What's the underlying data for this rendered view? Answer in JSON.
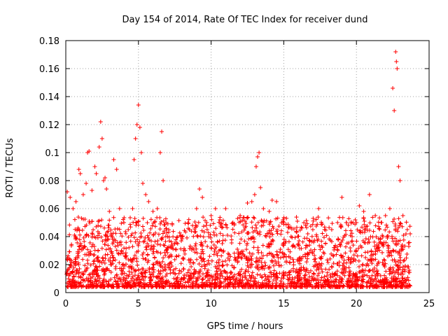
{
  "chart_data": {
    "type": "scatter",
    "title": "Day 154 of 2014, Rate Of TEC Index for receiver dund",
    "xlabel": "GPS time / hours",
    "ylabel": "ROTI / TECUs",
    "xlim": [
      0,
      25
    ],
    "ylim": [
      0,
      0.18
    ],
    "xticks": [
      0,
      5,
      10,
      15,
      20,
      25
    ],
    "yticks": [
      0,
      0.02,
      0.04,
      0.06,
      0.08,
      0.1,
      0.12,
      0.14,
      0.16,
      0.18
    ],
    "xtick_labels": [
      "0",
      "5",
      "10",
      "15",
      "20",
      "25"
    ],
    "ytick_labels": [
      "0",
      "0.02",
      "0.04",
      "0.06",
      "0.08",
      "0.1",
      "0.12",
      "0.14",
      "0.16",
      "0.18"
    ],
    "grid": true,
    "marker": "plus",
    "color": "#ff0000",
    "series": [
      {
        "name": "ROTI",
        "points": [
          [
            0.1,
            0.072
          ],
          [
            0.3,
            0.068
          ],
          [
            0.5,
            0.06
          ],
          [
            0.7,
            0.065
          ],
          [
            0.9,
            0.088
          ],
          [
            1.0,
            0.085
          ],
          [
            1.2,
            0.07
          ],
          [
            1.4,
            0.078
          ],
          [
            1.5,
            0.1
          ],
          [
            1.6,
            0.101
          ],
          [
            1.8,
            0.073
          ],
          [
            2.0,
            0.09
          ],
          [
            2.1,
            0.085
          ],
          [
            2.3,
            0.104
          ],
          [
            2.4,
            0.122
          ],
          [
            2.5,
            0.11
          ],
          [
            2.6,
            0.08
          ],
          [
            2.7,
            0.082
          ],
          [
            2.8,
            0.074
          ],
          [
            3.0,
            0.058
          ],
          [
            3.3,
            0.095
          ],
          [
            3.5,
            0.088
          ],
          [
            3.7,
            0.06
          ],
          [
            4.0,
            0.05
          ],
          [
            4.3,
            0.045
          ],
          [
            4.6,
            0.06
          ],
          [
            4.7,
            0.095
          ],
          [
            4.8,
            0.11
          ],
          [
            4.9,
            0.12
          ],
          [
            5.0,
            0.134
          ],
          [
            5.1,
            0.118
          ],
          [
            5.2,
            0.1
          ],
          [
            5.3,
            0.078
          ],
          [
            5.5,
            0.07
          ],
          [
            5.7,
            0.065
          ],
          [
            6.0,
            0.058
          ],
          [
            6.3,
            0.06
          ],
          [
            6.5,
            0.1
          ],
          [
            6.6,
            0.115
          ],
          [
            6.7,
            0.08
          ],
          [
            7.0,
            0.04
          ],
          [
            7.5,
            0.035
          ],
          [
            8.0,
            0.04
          ],
          [
            8.5,
            0.045
          ],
          [
            9.0,
            0.06
          ],
          [
            9.2,
            0.074
          ],
          [
            9.4,
            0.068
          ],
          [
            9.7,
            0.05
          ],
          [
            10.0,
            0.055
          ],
          [
            10.3,
            0.06
          ],
          [
            10.6,
            0.052
          ],
          [
            11.0,
            0.06
          ],
          [
            11.5,
            0.05
          ],
          [
            12.0,
            0.055
          ],
          [
            12.5,
            0.064
          ],
          [
            12.8,
            0.065
          ],
          [
            13.0,
            0.07
          ],
          [
            13.1,
            0.09
          ],
          [
            13.2,
            0.097
          ],
          [
            13.3,
            0.1
          ],
          [
            13.4,
            0.075
          ],
          [
            13.6,
            0.06
          ],
          [
            14.0,
            0.058
          ],
          [
            14.2,
            0.066
          ],
          [
            14.5,
            0.065
          ],
          [
            15.0,
            0.05
          ],
          [
            15.5,
            0.04
          ],
          [
            16.0,
            0.035
          ],
          [
            16.5,
            0.048
          ],
          [
            17.0,
            0.045
          ],
          [
            17.4,
            0.06
          ],
          [
            17.8,
            0.045
          ],
          [
            18.3,
            0.045
          ],
          [
            18.7,
            0.05
          ],
          [
            19.0,
            0.068
          ],
          [
            19.3,
            0.05
          ],
          [
            19.7,
            0.04
          ],
          [
            20.0,
            0.05
          ],
          [
            20.2,
            0.062
          ],
          [
            20.5,
            0.058
          ],
          [
            20.9,
            0.07
          ],
          [
            21.3,
            0.055
          ],
          [
            21.7,
            0.05
          ],
          [
            22.0,
            0.055
          ],
          [
            22.3,
            0.06
          ],
          [
            22.5,
            0.146
          ],
          [
            22.6,
            0.13
          ],
          [
            22.7,
            0.172
          ],
          [
            22.75,
            0.165
          ],
          [
            22.8,
            0.16
          ],
          [
            22.9,
            0.09
          ],
          [
            23.0,
            0.08
          ],
          [
            23.2,
            0.055
          ],
          [
            23.5,
            0.045
          ],
          [
            23.7,
            0.042
          ]
        ]
      }
    ]
  }
}
